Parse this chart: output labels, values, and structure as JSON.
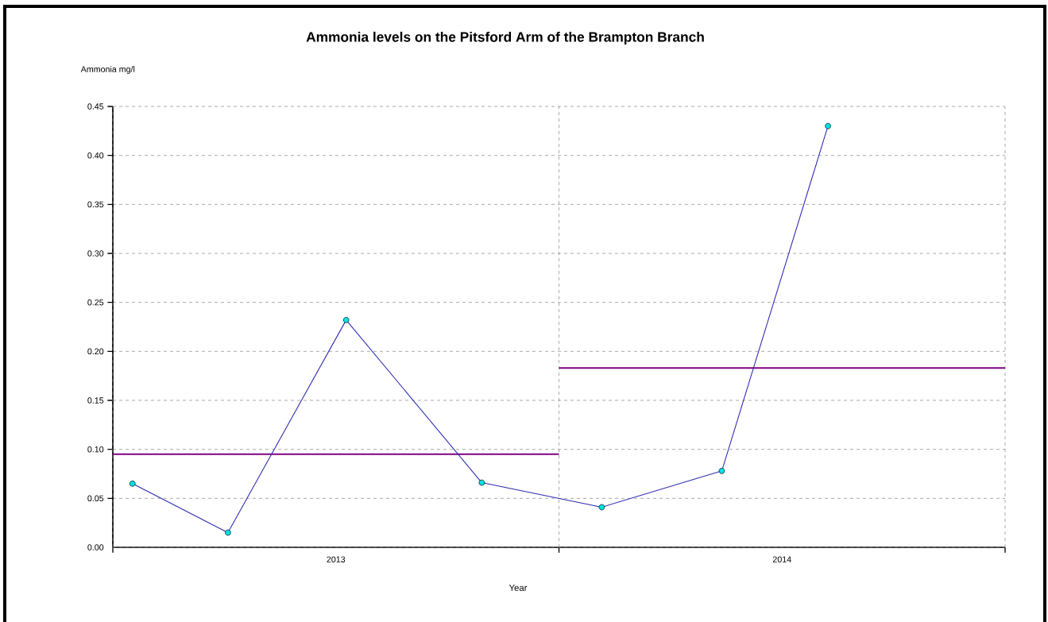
{
  "chart_data": {
    "type": "line",
    "title": "Ammonia levels on the Pitsford Arm of the Brampton Branch",
    "ylabel": "Ammonia mg/l",
    "xlabel": "Year",
    "x": [
      2013.044,
      2013.258,
      2013.523,
      2013.827,
      2014.096,
      2014.365,
      2014.603
    ],
    "series": [
      {
        "color": "#2b2bb0",
        "values": [
          0.065,
          0.015,
          0.232,
          0.066,
          0.041,
          0.078,
          0.43
        ],
        "marker": "circle"
      },
      {
        "color": "#800080",
        "x": [
          2013,
          2014
        ],
        "values": [
          0.095,
          0.095
        ],
        "marker": "none"
      },
      {
        "color": "#800080",
        "x": [
          2014,
          2015
        ],
        "values": [
          0.183,
          0.183
        ],
        "marker": "none"
      }
    ],
    "xlim": [
      2013,
      2015
    ],
    "xticks": [
      {
        "value": 2013,
        "label": null
      },
      {
        "value": 2013.5,
        "label": "2013"
      },
      {
        "value": 2014,
        "label": null
      },
      {
        "value": 2014.5,
        "label": "2014"
      },
      {
        "value": 2015,
        "label": null
      }
    ],
    "ylim": [
      0,
      0.45
    ],
    "yticks": [
      {
        "value": 0,
        "label": "0.00"
      },
      {
        "value": 0.05,
        "label": "0.05"
      },
      {
        "value": 0.1,
        "label": "0.10"
      },
      {
        "value": 0.15,
        "label": "0.15"
      },
      {
        "value": 0.2,
        "label": "0.20"
      },
      {
        "value": 0.25,
        "label": "0.25"
      },
      {
        "value": 0.3,
        "label": "0.30"
      },
      {
        "value": 0.35,
        "label": "0.35"
      },
      {
        "value": 0.4,
        "label": "0.40"
      },
      {
        "value": 0.45,
        "label": "0.45"
      }
    ],
    "grid": true,
    "marker": "circle",
    "line_style": "solid"
  }
}
